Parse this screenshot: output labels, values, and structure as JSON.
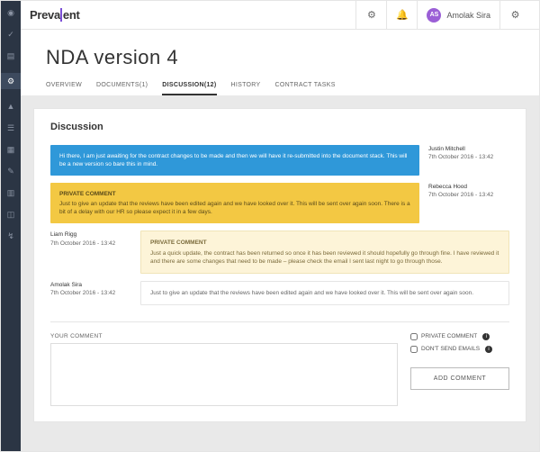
{
  "brand": {
    "name_prefix": "Preva",
    "name_suffix": "ent"
  },
  "user": {
    "initials": "AS",
    "name": "Amolak Sira"
  },
  "page": {
    "title": "NDA version 4"
  },
  "tabs": [
    {
      "label": "OVERVIEW"
    },
    {
      "label": "DOCUMENTS(1)"
    },
    {
      "label": "DISCUSSION(12)",
      "active": true
    },
    {
      "label": "HISTORY"
    },
    {
      "label": "CONTRACT TASKS"
    }
  ],
  "panel": {
    "heading": "Discussion"
  },
  "comments": [
    {
      "side": "right",
      "style": "blue",
      "author": "Justin Mitchell",
      "time": "7th October 2016 - 13:42",
      "text": "Hi there, I am just awaiting for the contract changes to be made and then we will have it re-submitted into the document stack. This will be a new version so bare this in mind."
    },
    {
      "side": "right",
      "style": "yellow",
      "author": "Rebecca Hood",
      "time": "7th October 2016 - 13:42",
      "private_label": "PRIVATE COMMENT",
      "text": "Just to give an update that the reviews have been edited again and we have looked over it. This will be sent over again soon. There is a bit of a delay with our HR so please expect it in a few days."
    },
    {
      "side": "left",
      "style": "lightyellow",
      "author": "Liam Rigg",
      "time": "7th October 2016 - 13:42",
      "private_label": "PRIVATE COMMENT",
      "text": "Just a quick update, the contract has been returned so once it has been reviewed it should hopefully go through fine. I have reviewed it and there are some changes that need to be made – please check the email I sent last night to go through those."
    },
    {
      "side": "left",
      "style": "plain",
      "author": "Amolak Sira",
      "time": "7th October 2016 - 13:42",
      "text": "Just to give an update that the reviews have been edited again and we have looked over it. This will be sent over again soon."
    }
  ],
  "form": {
    "label": "YOUR COMMENT",
    "private_label": "PRIVATE COMMENT",
    "emails_label": "DON'T SEND EMAILS",
    "button": "ADD COMMENT"
  },
  "sidebar_icons": [
    "◉",
    "✓",
    "▤",
    "⚙",
    "▲",
    "☰",
    "▦",
    "✎",
    "▥",
    "◫",
    "↯"
  ],
  "colors": {
    "blue": "#2f98d9",
    "yellow": "#f3c843",
    "lightyellow": "#fdf4d8",
    "sidebar": "#2b3544",
    "accent": "#7b4fd6"
  }
}
